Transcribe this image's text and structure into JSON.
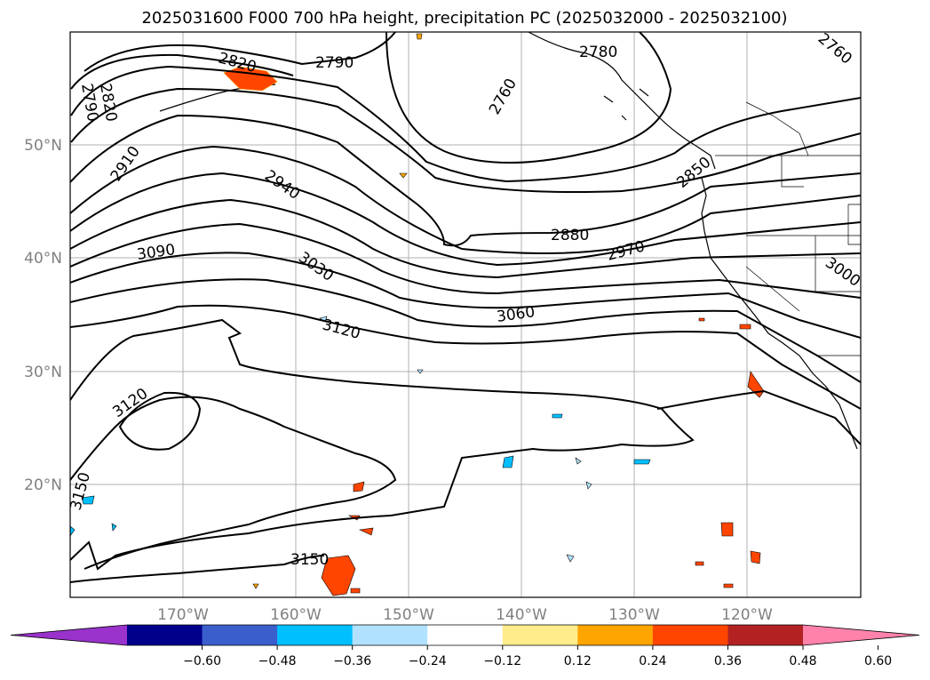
{
  "title": "2025031600 F000 700 hPa height, precipitation PC (2025032000 - 2025032100)",
  "map": {
    "lat_labels": [
      "50°N",
      "40°N",
      "30°N",
      "20°N"
    ],
    "lon_labels": [
      "170°W",
      "160°W",
      "150°W",
      "140°W",
      "130°W",
      "120°W"
    ],
    "lat_range": [
      10,
      60
    ],
    "lon_range": [
      -180,
      -110
    ],
    "grid": true
  },
  "contour_labels": [
    "2820",
    "2790",
    "2760",
    "2780",
    "2760",
    "2820",
    "2790",
    "2910",
    "2940",
    "2850",
    "2880",
    "2970",
    "3090",
    "3030",
    "3000",
    "3120",
    "3060",
    "3120",
    "3150",
    "3150"
  ],
  "colorbar": {
    "ticks": [
      "−0.60",
      "−0.48",
      "−0.36",
      "−0.24",
      "−0.12",
      "0.12",
      "0.24",
      "0.36",
      "0.48",
      "0.60"
    ],
    "colors": [
      "#9933cc",
      "#00008b",
      "#3a5fcd",
      "#00bfff",
      "#b0e2ff",
      "#ffffff",
      "#ffec8b",
      "#ffa500",
      "#ff4500",
      "#b22222",
      "#ff82ab"
    ]
  }
}
